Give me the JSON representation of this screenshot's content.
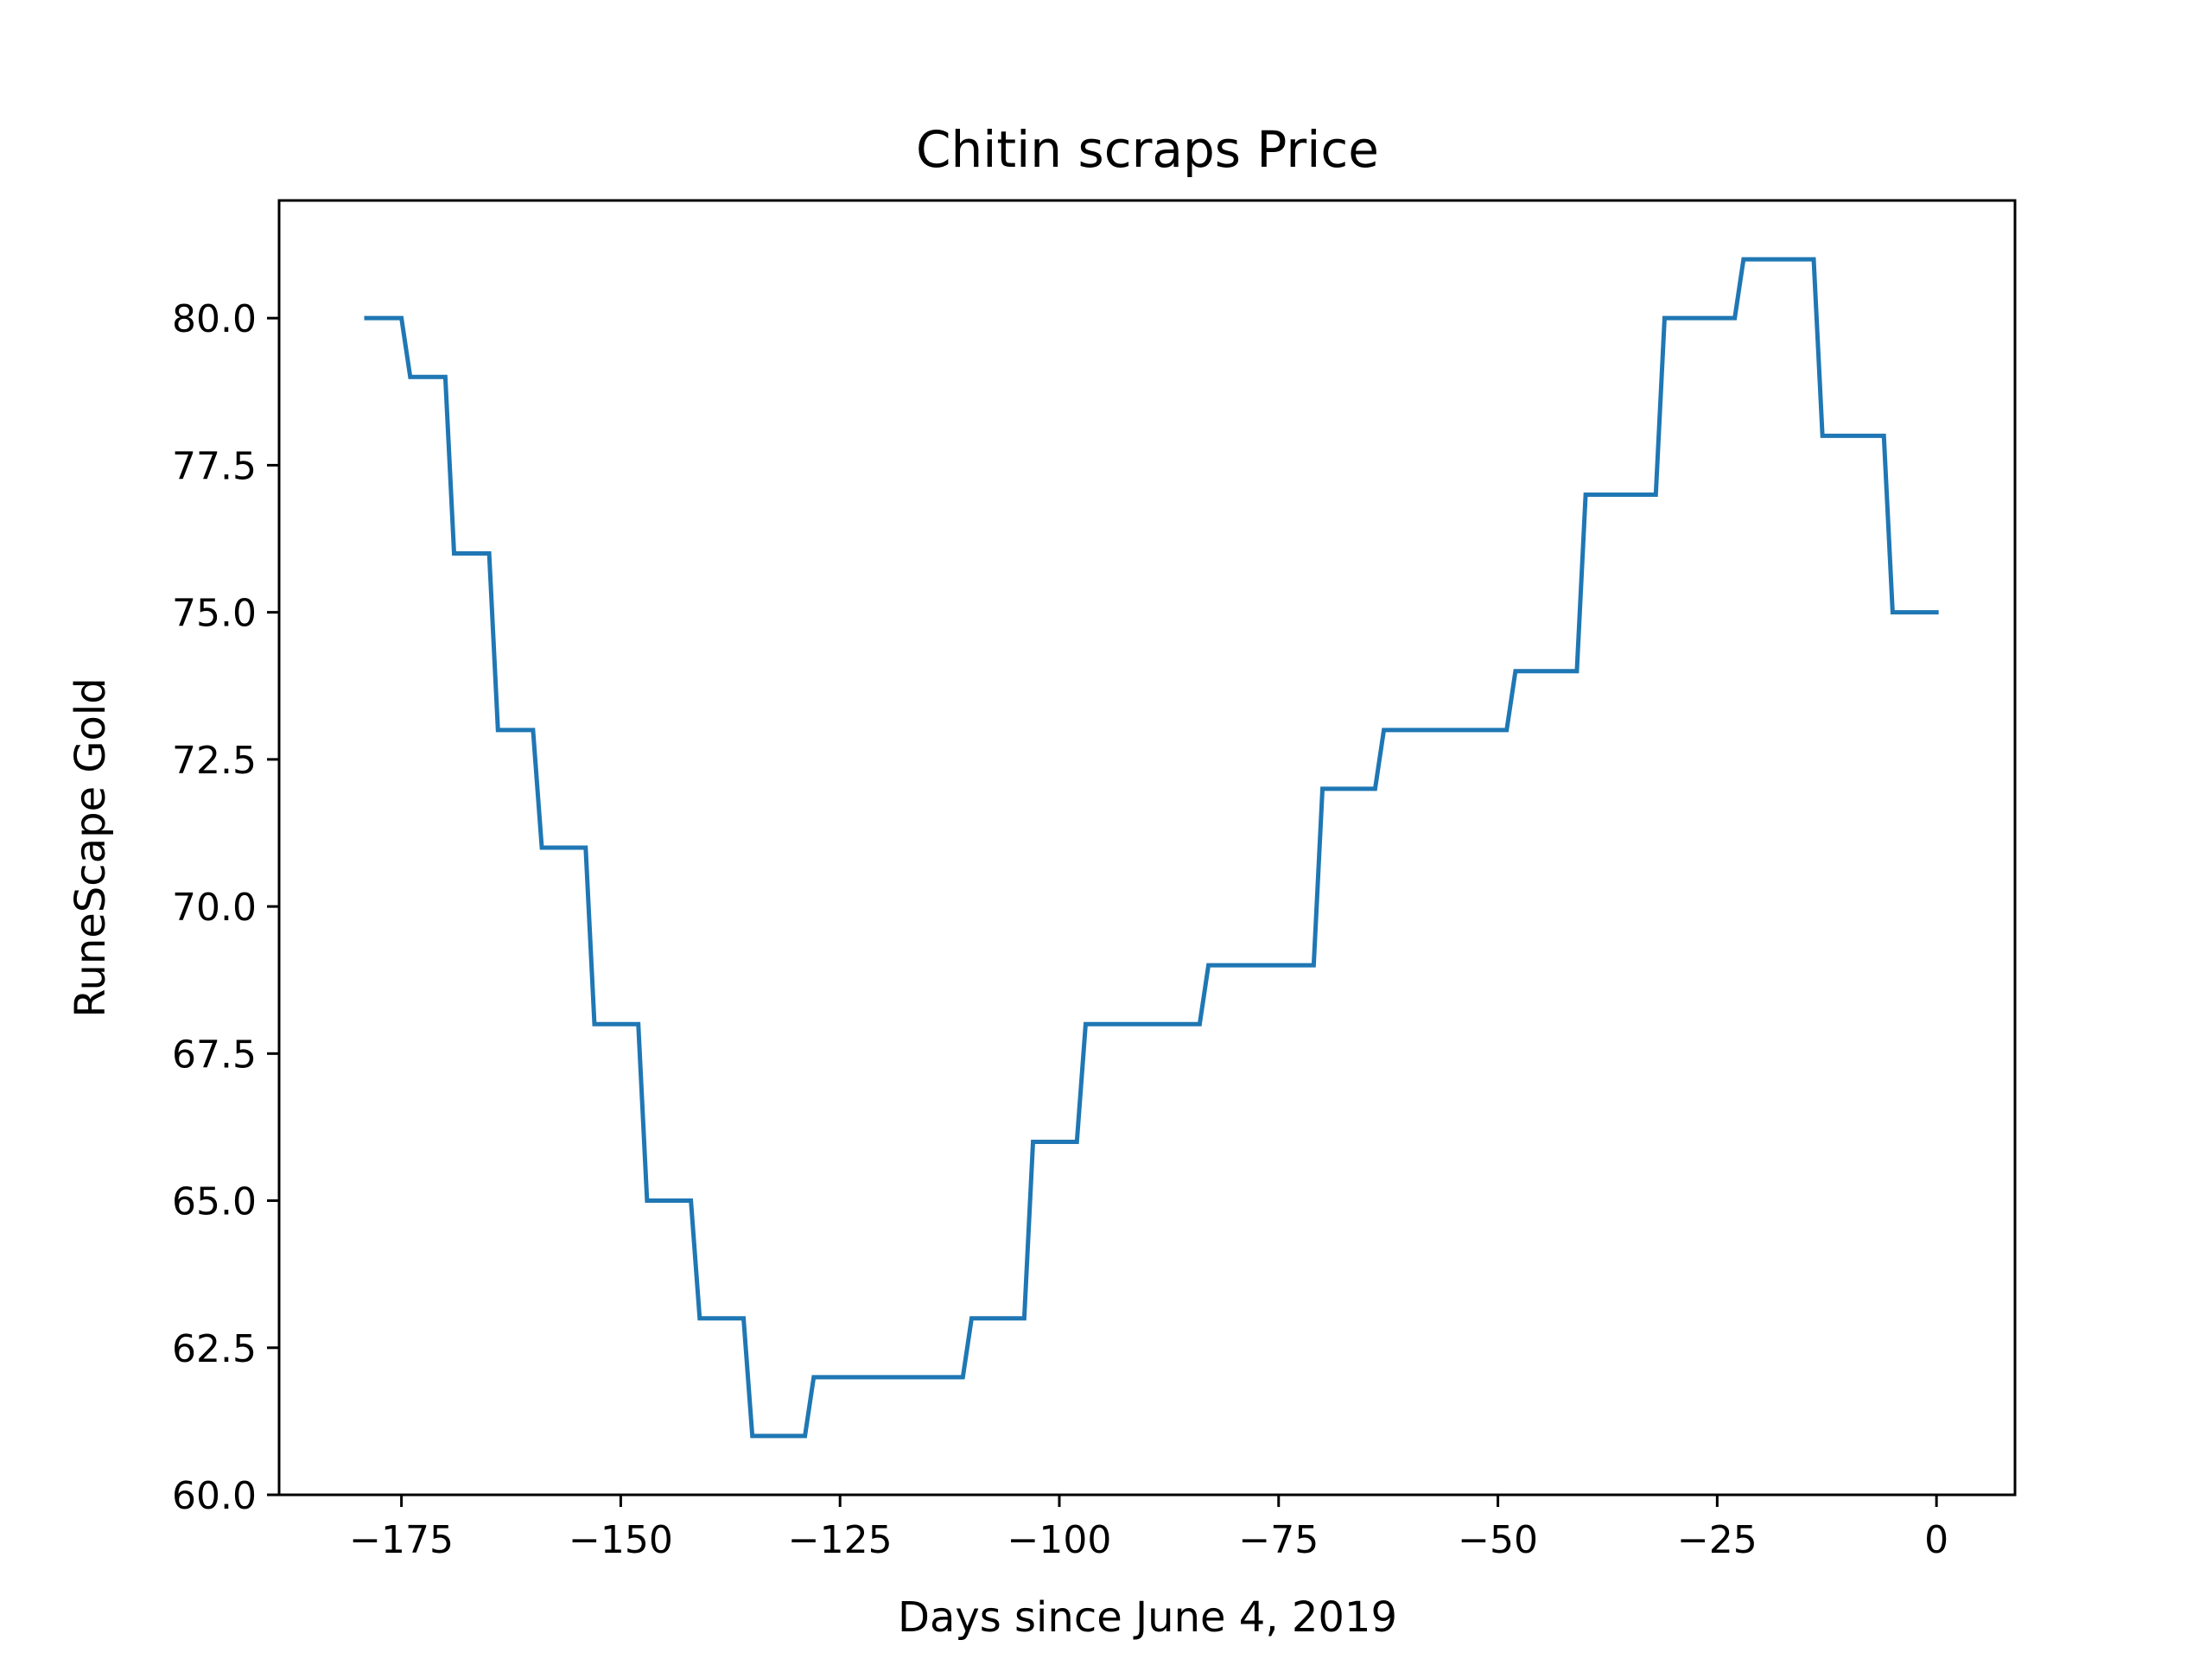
{
  "chart_data": {
    "type": "line",
    "title": "Chitin scraps Price",
    "xlabel": "Days since June 4, 2019",
    "ylabel": "RuneScape Gold",
    "xlim": [
      -188.95,
      8.95
    ],
    "ylim": [
      60.0,
      82.0
    ],
    "xticks": [
      -175,
      -150,
      -125,
      -100,
      -75,
      -50,
      -25,
      0
    ],
    "xtick_labels": [
      "−175",
      "−150",
      "−125",
      "−100",
      "−75",
      "−50",
      "−25",
      "0"
    ],
    "yticks": [
      60.0,
      62.5,
      65.0,
      67.5,
      70.0,
      72.5,
      75.0,
      77.5,
      80.0
    ],
    "ytick_labels": [
      "60.0",
      "62.5",
      "65.0",
      "67.5",
      "70.0",
      "72.5",
      "75.0",
      "77.5",
      "80.0"
    ],
    "grid": false,
    "series": [
      {
        "name": "Chitin scraps",
        "color": "#1f77b4",
        "x": [
          -179,
          -175,
          -174,
          -170,
          -169,
          -165,
          -164,
          -160,
          -159,
          -154,
          -153,
          -148,
          -147,
          -142,
          -141,
          -136,
          -135,
          -129,
          -128,
          -111,
          -110,
          -104,
          -103,
          -98,
          -97,
          -84,
          -83,
          -71,
          -70,
          -64,
          -63,
          -49,
          -48,
          -41,
          -40,
          -32,
          -31,
          -23,
          -22,
          -14,
          -13,
          -6,
          -5,
          0
        ],
        "y": [
          80,
          80,
          79,
          79,
          76,
          76,
          73,
          73,
          71,
          71,
          68,
          68,
          65,
          65,
          63,
          63,
          61,
          61,
          62,
          62,
          63,
          63,
          66,
          66,
          68,
          68,
          69,
          69,
          72,
          72,
          73,
          73,
          74,
          74,
          77,
          77,
          80,
          80,
          81,
          81,
          78,
          78,
          75,
          75
        ]
      }
    ]
  }
}
